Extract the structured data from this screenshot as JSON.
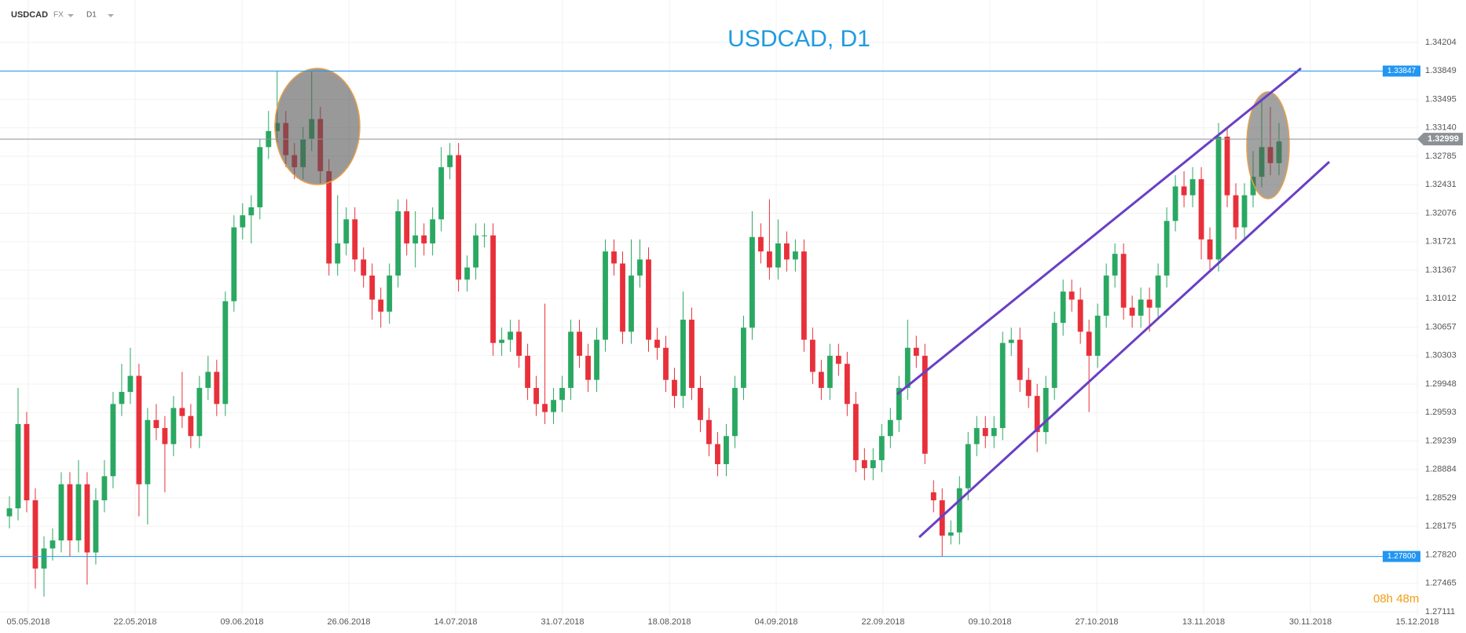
{
  "header": {
    "symbol": "USDCAD",
    "market": "FX",
    "timeframe": "D1"
  },
  "chart_data": {
    "type": "candlestick",
    "title": "USDCAD, D1",
    "up_color": "#2aa862",
    "down_color": "#e8303a",
    "open": [
      1.283,
      1.284,
      1.2945,
      1.285,
      1.2765,
      1.279,
      1.28,
      1.287,
      1.28,
      1.287,
      1.2785,
      1.285,
      1.288,
      1.297,
      1.2985,
      1.3005,
      1.287,
      1.295,
      1.294,
      1.292,
      1.2965,
      1.2955,
      1.293,
      1.299,
      1.301,
      1.297,
      1.3098,
      1.319,
      1.3205,
      1.3215,
      1.329,
      1.331,
      1.332,
      1.328,
      1.3265,
      1.33,
      1.3325,
      1.326,
      1.3145,
      1.317,
      1.32,
      1.315,
      1.313,
      1.31,
      1.3085,
      1.313,
      1.321,
      1.317,
      1.318,
      1.317,
      1.32,
      1.3265,
      1.328,
      1.3125,
      1.314,
      1.318,
      1.318,
      1.3046,
      1.305,
      1.306,
      1.303,
      1.299,
      1.297,
      1.296,
      1.2975,
      1.299,
      1.306,
      1.303,
      1.3,
      1.305,
      1.316,
      1.3145,
      1.306,
      1.313,
      1.315,
      1.305,
      1.304,
      1.3,
      1.298,
      1.3075,
      1.299,
      1.295,
      1.292,
      1.2895,
      1.293,
      1.299,
      1.3065,
      1.3178,
      1.316,
      1.314,
      1.317,
      1.315,
      1.316,
      1.305,
      1.301,
      1.299,
      1.303,
      1.302,
      1.297,
      1.29,
      1.289,
      1.29,
      1.293,
      1.295,
      1.299,
      1.304,
      1.303,
      1.286,
      1.285,
      1.2806,
      1.281,
      1.2865,
      1.292,
      1.294,
      1.293,
      1.294,
      1.3046,
      1.305,
      1.3,
      1.298,
      1.2935,
      1.299,
      1.3071,
      1.311,
      1.31,
      1.306,
      1.303,
      1.308,
      1.313,
      1.3157,
      1.309,
      1.308,
      1.31,
      1.309,
      1.313,
      1.3198,
      1.3241,
      1.323,
      1.325,
      1.3175,
      1.315,
      1.3303,
      1.323,
      1.319,
      1.323,
      1.3253,
      1.329,
      1.327
    ],
    "high": [
      1.2855,
      1.299,
      1.296,
      1.2865,
      1.2805,
      1.2815,
      1.2885,
      1.2885,
      1.29,
      1.2885,
      1.2865,
      1.29,
      1.2985,
      1.302,
      1.304,
      1.302,
      1.2965,
      1.297,
      1.2955,
      1.298,
      1.301,
      1.297,
      1.3005,
      1.303,
      1.3025,
      1.311,
      1.3205,
      1.322,
      1.323,
      1.33,
      1.3335,
      1.3385,
      1.3335,
      1.3295,
      1.3315,
      1.3385,
      1.334,
      1.3275,
      1.323,
      1.3215,
      1.3215,
      1.3165,
      1.3145,
      1.3115,
      1.3145,
      1.3225,
      1.3225,
      1.321,
      1.3195,
      1.3215,
      1.329,
      1.3295,
      1.3295,
      1.3155,
      1.3195,
      1.3195,
      1.3195,
      1.3065,
      1.3075,
      1.3075,
      1.3045,
      1.3005,
      1.3095,
      1.299,
      1.3005,
      1.3075,
      1.3075,
      1.3045,
      1.3065,
      1.3175,
      1.3175,
      1.316,
      1.3175,
      1.3175,
      1.3165,
      1.3065,
      1.3055,
      1.3015,
      1.311,
      1.309,
      1.3005,
      1.2965,
      1.2935,
      1.2945,
      1.3005,
      1.308,
      1.321,
      1.3195,
      1.3225,
      1.32,
      1.3185,
      1.3175,
      1.3175,
      1.3065,
      1.3025,
      1.3045,
      1.3045,
      1.3035,
      1.2985,
      1.2915,
      1.2915,
      1.2945,
      1.2965,
      1.3005,
      1.3075,
      1.3055,
      1.3045,
      1.2875,
      1.2865,
      1.2825,
      1.288,
      1.2935,
      1.2955,
      1.2955,
      1.2955,
      1.306,
      1.3065,
      1.3065,
      1.3015,
      1.2995,
      1.3005,
      1.3085,
      1.3125,
      1.3125,
      1.3115,
      1.3075,
      1.3095,
      1.3145,
      1.317,
      1.317,
      1.3105,
      1.3115,
      1.3115,
      1.3145,
      1.3215,
      1.3255,
      1.326,
      1.3265,
      1.3265,
      1.319,
      1.332,
      1.3315,
      1.3245,
      1.3245,
      1.3285,
      1.335,
      1.334,
      1.332
    ],
    "low": [
      1.2815,
      1.2825,
      1.2835,
      1.274,
      1.273,
      1.2775,
      1.2785,
      1.278,
      1.2785,
      1.2745,
      1.277,
      1.2835,
      1.2865,
      1.2955,
      1.297,
      1.283,
      1.282,
      1.2925,
      1.286,
      1.2905,
      1.294,
      1.2915,
      1.2915,
      1.2975,
      1.2955,
      1.2955,
      1.3085,
      1.3175,
      1.317,
      1.32,
      1.3275,
      1.3295,
      1.3265,
      1.325,
      1.325,
      1.3285,
      1.3245,
      1.313,
      1.313,
      1.3155,
      1.3135,
      1.3115,
      1.3075,
      1.3065,
      1.307,
      1.3115,
      1.3155,
      1.314,
      1.3155,
      1.3155,
      1.3185,
      1.325,
      1.311,
      1.311,
      1.3125,
      1.3165,
      1.303,
      1.303,
      1.3035,
      1.3015,
      1.2975,
      1.2955,
      1.2945,
      1.2945,
      1.296,
      1.2975,
      1.3015,
      1.2985,
      1.2985,
      1.3035,
      1.313,
      1.3045,
      1.3045,
      1.3115,
      1.3035,
      1.3025,
      1.2985,
      1.2965,
      1.2965,
      1.2975,
      1.2935,
      1.2905,
      1.288,
      1.288,
      1.2915,
      1.2975,
      1.305,
      1.3145,
      1.3125,
      1.3125,
      1.3135,
      1.3135,
      1.3035,
      1.2995,
      1.2975,
      1.2975,
      1.3005,
      1.2955,
      1.2885,
      1.2875,
      1.2875,
      1.2885,
      1.2915,
      1.2935,
      1.2975,
      1.3015,
      1.2895,
      1.2835,
      1.278,
      1.2795,
      1.2795,
      1.285,
      1.2905,
      1.2915,
      1.2915,
      1.2925,
      1.303,
      1.2985,
      1.2965,
      1.291,
      1.292,
      1.2975,
      1.3055,
      1.3085,
      1.3045,
      1.296,
      1.3015,
      1.3065,
      1.3115,
      1.3075,
      1.3065,
      1.3065,
      1.306,
      1.3075,
      1.3115,
      1.3185,
      1.3215,
      1.3215,
      1.315,
      1.3135,
      1.3135,
      1.3215,
      1.3175,
      1.3175,
      1.3215,
      1.324,
      1.3255,
      1.3255
    ],
    "close": [
      1.284,
      1.2945,
      1.285,
      1.2765,
      1.279,
      1.28,
      1.287,
      1.28,
      1.287,
      1.2785,
      1.285,
      1.288,
      1.297,
      1.2985,
      1.3005,
      1.287,
      1.295,
      1.294,
      1.292,
      1.2965,
      1.2955,
      1.293,
      1.299,
      1.301,
      1.297,
      1.3098,
      1.319,
      1.3205,
      1.3215,
      1.329,
      1.331,
      1.332,
      1.328,
      1.3265,
      1.33,
      1.3325,
      1.326,
      1.3145,
      1.317,
      1.32,
      1.315,
      1.313,
      1.31,
      1.3085,
      1.313,
      1.321,
      1.317,
      1.318,
      1.317,
      1.32,
      1.3265,
      1.328,
      1.3125,
      1.314,
      1.318,
      1.318,
      1.3046,
      1.305,
      1.306,
      1.303,
      1.299,
      1.297,
      1.296,
      1.2975,
      1.299,
      1.306,
      1.303,
      1.3,
      1.305,
      1.316,
      1.3145,
      1.306,
      1.313,
      1.315,
      1.305,
      1.304,
      1.3,
      1.298,
      1.3075,
      1.299,
      1.295,
      1.292,
      1.2895,
      1.293,
      1.299,
      1.3065,
      1.3178,
      1.316,
      1.314,
      1.317,
      1.315,
      1.316,
      1.305,
      1.301,
      1.299,
      1.303,
      1.302,
      1.297,
      1.29,
      1.289,
      1.29,
      1.293,
      1.295,
      1.299,
      1.304,
      1.303,
      1.2908,
      1.285,
      1.2806,
      1.281,
      1.2865,
      1.292,
      1.294,
      1.293,
      1.294,
      1.3046,
      1.305,
      1.3,
      1.298,
      1.2935,
      1.299,
      1.3071,
      1.311,
      1.31,
      1.306,
      1.303,
      1.308,
      1.313,
      1.3157,
      1.309,
      1.308,
      1.31,
      1.309,
      1.313,
      1.3198,
      1.3241,
      1.323,
      1.325,
      1.3175,
      1.315,
      1.3303,
      1.323,
      1.319,
      1.323,
      1.3253,
      1.329,
      1.327,
      1.3297
    ],
    "ylim": [
      1.27111,
      1.34204
    ],
    "yticks": [
      1.34204,
      1.33849,
      1.33495,
      {
        "value": 1.3314,
        "label": "1.33140"
      },
      1.32785,
      1.32431,
      1.32076,
      1.31721,
      1.31367,
      1.31012,
      1.30657,
      1.30303,
      1.29948,
      1.29593,
      1.29239,
      1.28884,
      1.28529,
      1.28175,
      {
        "value": 1.2782,
        "label": "1.27820"
      },
      1.27465,
      1.27111
    ],
    "xticks": [
      "05.05.2018",
      "22.05.2018",
      "09.06.2018",
      "26.06.2018",
      "14.07.2018",
      "31.07.2018",
      "18.08.2018",
      "04.09.2018",
      "22.09.2018",
      "09.10.2018",
      "27.10.2018",
      "13.11.2018",
      "30.11.2018",
      "15.12.2018"
    ],
    "hlines": [
      1.33847,
      {
        "value": 1.278,
        "label": "1.27800"
      }
    ],
    "hline_color": "#2196f3",
    "current_price": 1.32999,
    "timer": "08h 48m",
    "grid": true
  }
}
